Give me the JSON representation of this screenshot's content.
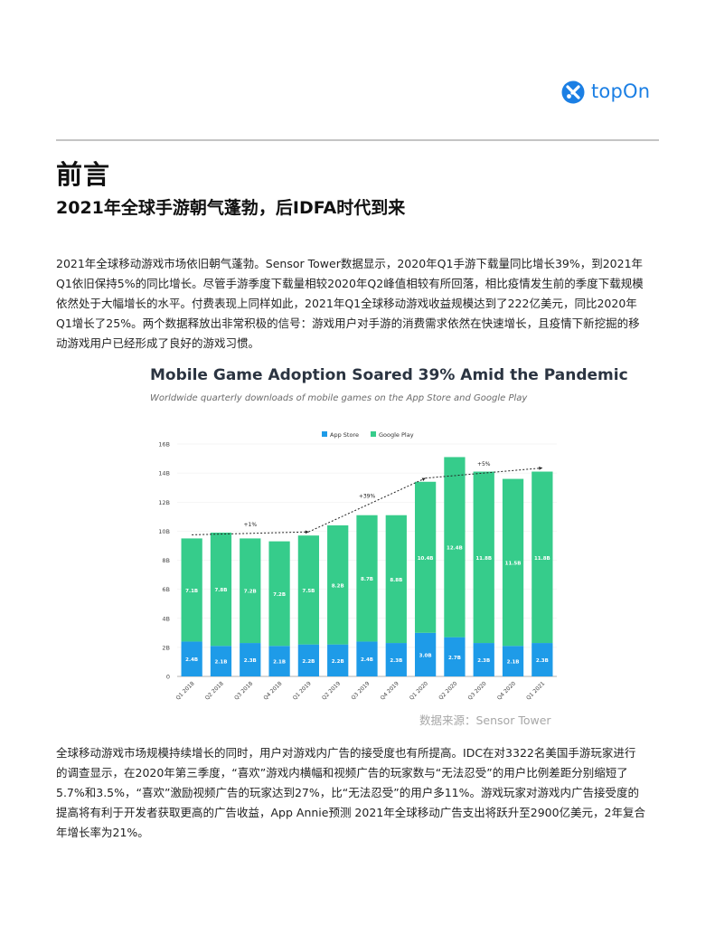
{
  "header": {
    "logo_text": "topOn",
    "logo_icon": "topon-logo-icon",
    "brand_color": "#1b7fe4"
  },
  "section": {
    "title": "前言",
    "subtitle": "2021年全球手游朝气蓬勃，后IDFA时代到来"
  },
  "paragraphs": {
    "p1": [
      "2021年全球移动游戏市场依旧朝气蓬勃。Sensor Tower数据显示，2020年Q1手游下载量同比增长39%，到2021年",
      "Q1依旧保持5%的同比增长。尽管手游季度下载量相较2020年Q2峰值相较有所回落，相比疫情发生前的季度下载规模",
      "依然处于大幅增长的水平。付费表现上同样如此，2021年Q1全球移动游戏收益规模达到了222亿美元，同比2020年",
      "Q1增长了25%。两个数据释放出非常积极的信号：游戏用户对手游的消费需求依然在快速增长，且疫情下新挖掘的移",
      "动游戏用户已经形成了良好的游戏习惯。"
    ],
    "p2": [
      "全球移动游戏市场规模持续增长的同时，用户对游戏内广告的接受度也有所提高。IDC在对3322名美国手游玩家进行",
      "的调查显示，在2020年第三季度，“喜欢”游戏内横幅和视频广告的玩家数与“无法忍受”的用户比例差距分别缩短了",
      "5.7%和3.5%，“喜欢”激励视频广告的玩家达到27%，比“无法忍受”的用户多11%。游戏玩家对游戏内广告接受度的",
      "提高将有利于开发者获取更高的广告收益，App Annie预测 2021年全球移动广告支出将跃升至2900亿美元，2年复合",
      "年增长率为21%。"
    ]
  },
  "source_note": "数据来源：Sensor Tower",
  "chart_data": {
    "type": "bar",
    "stacked": true,
    "title": "Mobile Game Adoption Soared 39% Amid the Pandemic",
    "subtitle": "Worldwide quarterly downloads of mobile games on the App Store and Google Play",
    "categories": [
      "Q1 2018",
      "Q2 2018",
      "Q3 2018",
      "Q4 2018",
      "Q1 2019",
      "Q2 2019",
      "Q3 2019",
      "Q4 2019",
      "Q1 2020",
      "Q2 2020",
      "Q3 2020",
      "Q4 2020",
      "Q1 2021"
    ],
    "series": [
      {
        "name": "App Store",
        "color": "#1e9be8",
        "values": [
          2.4,
          2.1,
          2.3,
          2.1,
          2.2,
          2.2,
          2.4,
          2.3,
          3.0,
          2.7,
          2.3,
          2.1,
          2.3
        ],
        "labels": [
          "2.4B",
          "2.1B",
          "2.3B",
          "2.1B",
          "2.2B",
          "2.2B",
          "2.4B",
          "2.3B",
          "3.0B",
          "2.7B",
          "2.3B",
          "2.1B",
          "2.3B"
        ]
      },
      {
        "name": "Google Play",
        "color": "#36cc8b",
        "values": [
          7.1,
          7.8,
          7.2,
          7.2,
          7.5,
          8.2,
          8.7,
          8.8,
          10.4,
          12.4,
          11.8,
          11.5,
          11.8
        ],
        "labels": [
          "7.1B",
          "7.8B",
          "7.2B",
          "7.2B",
          "7.5B",
          "8.2B",
          "8.7B",
          "8.8B",
          "10.4B",
          "12.4B",
          "11.8B",
          "11.5B",
          "11.8B"
        ]
      }
    ],
    "y_ticks": [
      "0",
      "2B",
      "4B",
      "6B",
      "8B",
      "10B",
      "12B",
      "14B",
      "16B"
    ],
    "ylim": [
      0,
      16
    ],
    "legend_position": "top-center",
    "annotations": [
      {
        "text": "+1%",
        "from": "Q1 2018",
        "to": "Q1 2019"
      },
      {
        "text": "+39%",
        "from": "Q1 2019",
        "to": "Q1 2020"
      },
      {
        "text": "+5%",
        "from": "Q1 2020",
        "to": "Q1 2021"
      }
    ]
  }
}
